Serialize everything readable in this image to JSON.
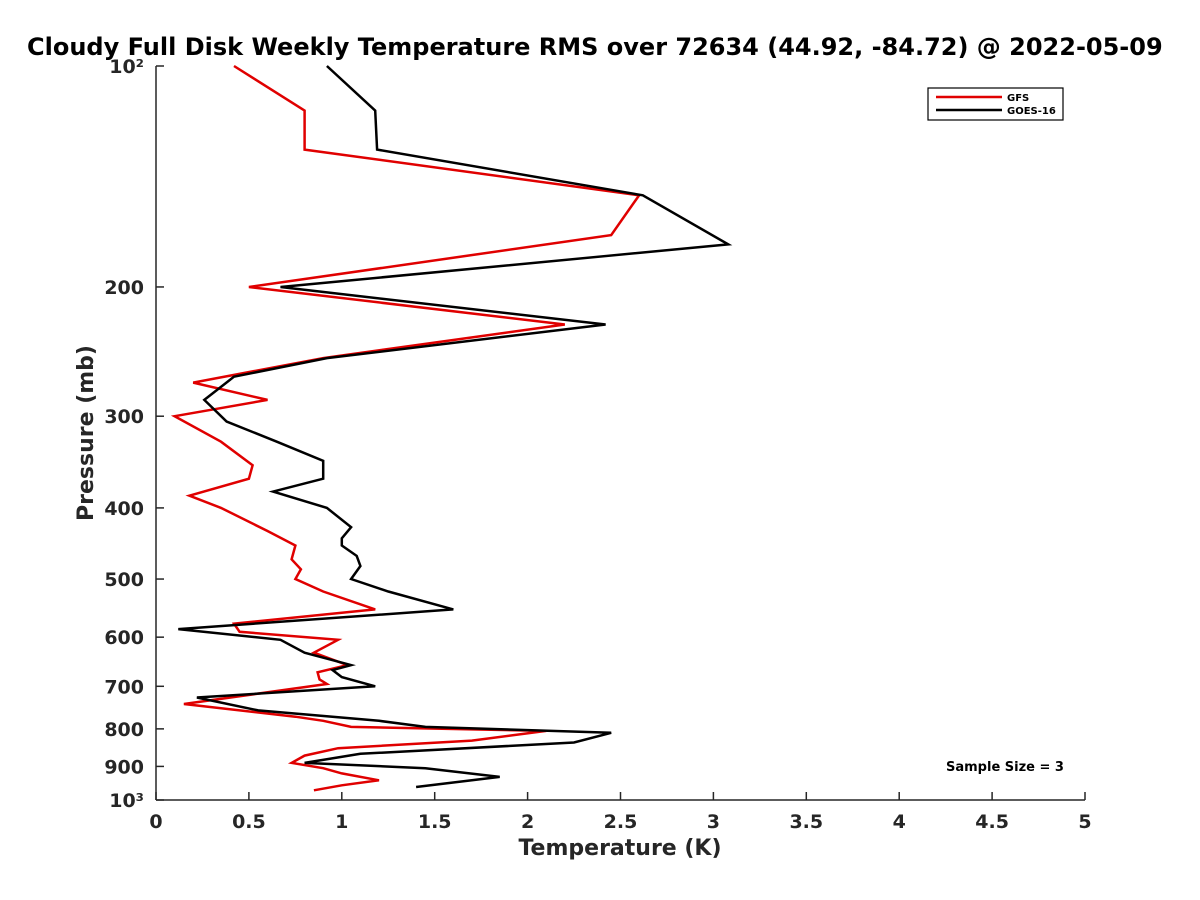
{
  "chart_data": {
    "type": "line",
    "title": "Cloudy Full Disk Weekly Temperature RMS over 72634 (44.92, -84.72) @ 2022-05-09",
    "xlabel": "Temperature (K)",
    "ylabel": "Pressure (mb)",
    "xlim": [
      0,
      5
    ],
    "ylim": [
      100,
      1000
    ],
    "y_scale": "log",
    "y_reversed": true,
    "x_ticks": [
      0,
      0.5,
      1,
      1.5,
      2,
      2.5,
      3,
      3.5,
      4,
      4.5,
      5
    ],
    "x_tick_labels": [
      "0",
      "0.5",
      "1",
      "1.5",
      "2",
      "2.5",
      "3",
      "3.5",
      "4",
      "4.5",
      "5"
    ],
    "y_ticks": [
      100,
      200,
      300,
      400,
      500,
      600,
      700,
      800,
      900,
      1000
    ],
    "y_tick_labels": [
      "10²",
      "200",
      "300",
      "400",
      "500",
      "600",
      "700",
      "800",
      "900",
      "10³"
    ],
    "grid": false,
    "legend_position": "top-right",
    "annotation": "Sample Size = 3",
    "series": [
      {
        "name": "GFS",
        "color": "#e00000",
        "points": [
          [
            0.42,
            100
          ],
          [
            0.8,
            115
          ],
          [
            0.8,
            130
          ],
          [
            2.6,
            150
          ],
          [
            2.45,
            170
          ],
          [
            0.5,
            200
          ],
          [
            2.2,
            225
          ],
          [
            0.9,
            250
          ],
          [
            0.2,
            270
          ],
          [
            0.6,
            285
          ],
          [
            0.1,
            300
          ],
          [
            0.35,
            325
          ],
          [
            0.52,
            350
          ],
          [
            0.5,
            365
          ],
          [
            0.18,
            385
          ],
          [
            0.35,
            400
          ],
          [
            0.6,
            430
          ],
          [
            0.75,
            450
          ],
          [
            0.73,
            470
          ],
          [
            0.78,
            485
          ],
          [
            0.75,
            500
          ],
          [
            0.9,
            520
          ],
          [
            1.18,
            550
          ],
          [
            0.42,
            575
          ],
          [
            0.45,
            590
          ],
          [
            0.98,
            605
          ],
          [
            0.85,
            630
          ],
          [
            1.03,
            655
          ],
          [
            0.87,
            670
          ],
          [
            0.88,
            685
          ],
          [
            0.92,
            695
          ],
          [
            0.15,
            740
          ],
          [
            0.75,
            770
          ],
          [
            0.9,
            780
          ],
          [
            1.05,
            795
          ],
          [
            2.1,
            805
          ],
          [
            1.7,
            830
          ],
          [
            0.98,
            850
          ],
          [
            0.8,
            870
          ],
          [
            0.73,
            890
          ],
          [
            0.9,
            905
          ],
          [
            1.0,
            920
          ],
          [
            1.2,
            940
          ],
          [
            1.0,
            955
          ],
          [
            0.85,
            970
          ]
        ]
      },
      {
        "name": "GOES-16",
        "color": "#000000",
        "points": [
          [
            0.92,
            100
          ],
          [
            1.18,
            115
          ],
          [
            1.19,
            130
          ],
          [
            2.62,
            150
          ],
          [
            3.08,
            175
          ],
          [
            0.67,
            200
          ],
          [
            2.42,
            225
          ],
          [
            0.92,
            250
          ],
          [
            0.42,
            265
          ],
          [
            0.26,
            285
          ],
          [
            0.38,
            305
          ],
          [
            0.65,
            325
          ],
          [
            0.9,
            345
          ],
          [
            0.9,
            365
          ],
          [
            0.63,
            380
          ],
          [
            0.92,
            400
          ],
          [
            1.05,
            425
          ],
          [
            1.0,
            440
          ],
          [
            1.0,
            450
          ],
          [
            1.08,
            465
          ],
          [
            1.1,
            480
          ],
          [
            1.05,
            500
          ],
          [
            1.25,
            520
          ],
          [
            1.6,
            550
          ],
          [
            0.12,
            585
          ],
          [
            0.67,
            605
          ],
          [
            0.8,
            630
          ],
          [
            1.05,
            655
          ],
          [
            0.95,
            665
          ],
          [
            1.0,
            680
          ],
          [
            1.18,
            700
          ],
          [
            0.22,
            725
          ],
          [
            0.55,
            755
          ],
          [
            1.2,
            780
          ],
          [
            1.45,
            795
          ],
          [
            2.45,
            810
          ],
          [
            2.25,
            835
          ],
          [
            1.1,
            865
          ],
          [
            0.8,
            890
          ],
          [
            1.45,
            905
          ],
          [
            1.85,
            930
          ],
          [
            1.4,
            960
          ]
        ]
      }
    ]
  }
}
